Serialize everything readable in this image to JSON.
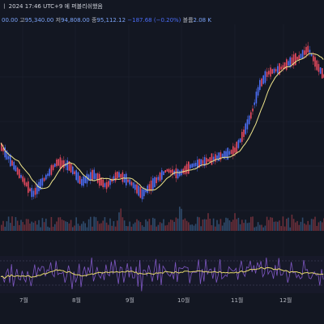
{
  "header": {
    "line1": "ㅣ 2024 17:46 UTC+9 에 퍼블리쉬했음",
    "open_label": "",
    "open_value": "00.00",
    "high_label": "고",
    "high_value": "95,340.00",
    "low_label": "저",
    "low_value": "94,808.00",
    "close_label": "종",
    "close_value": "95,112.12",
    "change": "−187.68 (−0.20%)",
    "volume_label": "볼륨",
    "volume_value": "2.08 K"
  },
  "x_axis_labels": [
    "7월",
    "8월",
    "9월",
    "10월",
    "11월",
    "12월"
  ],
  "colors": {
    "background": "#131722",
    "up": "#e84a5f",
    "down": "#4c6ef5",
    "ma": "#f0e68c",
    "rsi": "#7e57c2",
    "signal": "#e6d96b",
    "grid": "#1e2230"
  }
}
